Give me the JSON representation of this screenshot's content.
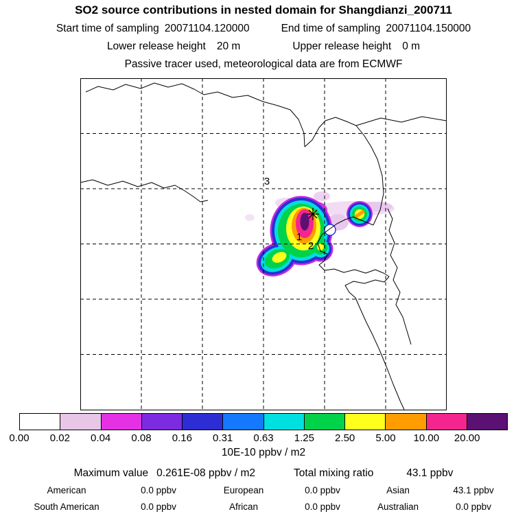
{
  "header": {
    "title": "SO2 source contributions in nested domain for Shangdianzi_200711",
    "start_time_label": "Start time of sampling",
    "start_time_value": "20071104.120000",
    "end_time_label": "End time of sampling",
    "end_time_value": "20071104.150000",
    "lower_release_label": "Lower release height",
    "lower_release_value": "20 m",
    "upper_release_label": "Upper release height",
    "upper_release_value": "0 m",
    "tracer_note": "Passive tracer used, meteorological data are from ECMWF"
  },
  "map": {
    "markers": [
      {
        "label": "3"
      },
      {
        "label": "1"
      },
      {
        "label": "2"
      }
    ],
    "station_marker": "asterisk at sampling station"
  },
  "chart_data": {
    "type": "heatmap",
    "title": "SO2 source contributions in nested domain for Shangdianzi_200711",
    "subtitle": "Passive tracer used, meteorological data are from ECMWF",
    "sampling_start": "20071104.120000",
    "sampling_end": "20071104.150000",
    "lower_release_height_m": 20,
    "upper_release_height_m": 0,
    "colorbar": {
      "units": "10E-10 ppbv / m2",
      "tick_labels": [
        "0.00",
        "0.02",
        "0.04",
        "0.08",
        "0.16",
        "0.31",
        "0.63",
        "1.25",
        "2.50",
        "5.00",
        "10.00",
        "20.00"
      ],
      "tick_values": [
        0.0,
        0.02,
        0.04,
        0.08,
        0.16,
        0.31,
        0.63,
        1.25,
        2.5,
        5.0,
        10.0,
        20.0
      ],
      "colors": [
        "#ffffff",
        "#e8c6e8",
        "#e431e4",
        "#7d2be0",
        "#2d2dd6",
        "#1579ff",
        "#00e0e0",
        "#00d24a",
        "#ffff1e",
        "#ff9c00",
        "#f5258f",
        "#5a1173"
      ]
    },
    "maximum_value": "0.261E-08 ppbv / m2",
    "total_mixing_ratio": "43.1 ppbv",
    "region_contributions_ppbv": {
      "American": 0.0,
      "European": 0.0,
      "Asian": 43.1,
      "South American": 0.0,
      "African": 0.0,
      "Australian": 0.0
    },
    "map_annotations": [
      "1",
      "2",
      "3"
    ]
  },
  "stats": {
    "maximum_value_label": "Maximum value",
    "maximum_value": "0.261E-08 ppbv / m2",
    "total_mixing_ratio_label": "Total mixing ratio",
    "total_mixing_ratio": "43.1 ppbv",
    "regions": [
      {
        "name": "American",
        "value": "0.0 ppbv"
      },
      {
        "name": "European",
        "value": "0.0 ppbv"
      },
      {
        "name": "Asian",
        "value": "43.1 ppbv"
      },
      {
        "name": "South American",
        "value": "0.0 ppbv"
      },
      {
        "name": "African",
        "value": "0.0 ppbv"
      },
      {
        "name": "Australian",
        "value": "0.0 ppbv"
      }
    ]
  }
}
